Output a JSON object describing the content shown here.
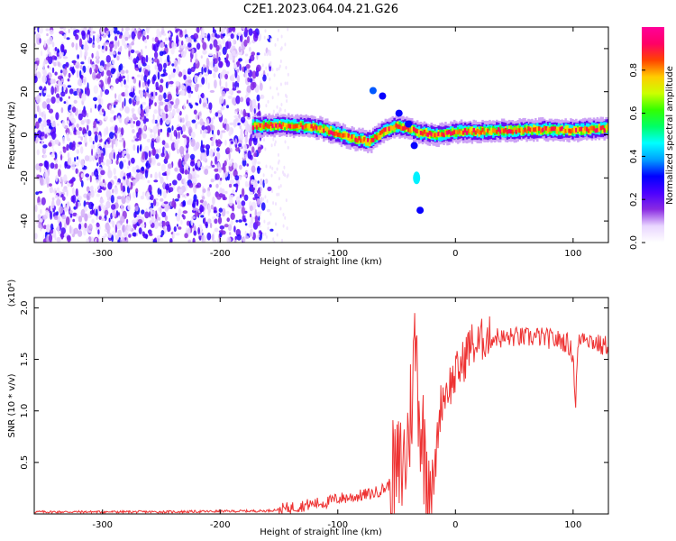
{
  "page_title": "C2E1.2023.064.04.21.G26",
  "chart_data": [
    {
      "type": "heatmap",
      "title": "C2E1.2023.064.04.21.G26",
      "xlabel": "Height of straight line (km)",
      "ylabel": "Frequency (Hz)",
      "xlim": [
        -358,
        130
      ],
      "ylim": [
        -50,
        50
      ],
      "x_ticks": [
        -300,
        -200,
        -100,
        0,
        100
      ],
      "y_ticks": [
        -40,
        -20,
        0,
        20,
        40
      ],
      "colorbar": {
        "label": "Normalized spectral amplitude",
        "range": [
          0.0,
          1.0
        ],
        "ticks": [
          "0.0",
          "0.2",
          "0.4",
          "0.6",
          "0.8"
        ],
        "colormap": [
          "#ffffff",
          "#e9d6ff",
          "#8a2be2",
          "#4b00ff",
          "#0000ff",
          "#00a0ff",
          "#00ffff",
          "#00ff66",
          "#33ff00",
          "#ccff00",
          "#ffcc00",
          "#ff4400",
          "#ff0066",
          "#ff0099"
        ]
      },
      "features": [
        {
          "name": "noise",
          "x_range": [
            -358,
            -165
          ],
          "y_range": [
            -50,
            50
          ],
          "amplitude": 0.15
        },
        {
          "name": "signal_line",
          "points": [
            [
              -172,
              4
            ],
            [
              -150,
              4.5
            ],
            [
              -130,
              4
            ],
            [
              -115,
              3
            ],
            [
              -100,
              0.5
            ],
            [
              -85,
              -2
            ],
            [
              -72,
              -3
            ],
            [
              -60,
              2
            ],
            [
              -50,
              4
            ],
            [
              -40,
              3
            ],
            [
              -30,
              1
            ],
            [
              -15,
              0
            ],
            [
              0,
              1.5
            ],
            [
              20,
              1.5
            ],
            [
              50,
              2
            ],
            [
              80,
              2.5
            ],
            [
              100,
              2
            ],
            [
              130,
              3
            ]
          ],
          "amplitude": 0.85
        },
        {
          "name": "branch",
          "points": [
            [
              -70,
              20.5
            ],
            [
              -62,
              18
            ],
            [
              -48,
              10
            ],
            [
              -40,
              5
            ],
            [
              -35,
              -5
            ],
            [
              -33,
              -20
            ],
            [
              -30,
              -35
            ]
          ],
          "amplitude": 0.3
        }
      ]
    },
    {
      "type": "line",
      "xlabel": "Height of straight line (km)",
      "ylabel": "SNR (10 * v/v)",
      "y_multiplier": "(x10⁴)",
      "xlim": [
        -358,
        130
      ],
      "ylim": [
        0,
        2.1
      ],
      "x_ticks": [
        -300,
        -200,
        -100,
        0,
        100
      ],
      "y_ticks": [
        "0.5",
        "1.0",
        "1.5",
        "2.0"
      ],
      "color": "#ee3333",
      "series": [
        {
          "x": [
            -358,
            -300,
            -250,
            -200,
            -160,
            -145,
            -130,
            -120,
            -110,
            -100,
            -90,
            -80,
            -70,
            -60,
            -50,
            -42,
            -38,
            -34,
            -30,
            -26,
            -22,
            -18,
            -15,
            -12,
            -8,
            -5,
            -2,
            0,
            3,
            5,
            8,
            10,
            14,
            18,
            22,
            26,
            30,
            35,
            40,
            50,
            60,
            70,
            80,
            90,
            95,
            100,
            102,
            104,
            106,
            110,
            115,
            120,
            125,
            130
          ],
          "y": [
            0.02,
            0.02,
            0.02,
            0.025,
            0.03,
            0.05,
            0.08,
            0.1,
            0.11,
            0.15,
            0.16,
            0.18,
            0.2,
            0.25,
            0.35,
            0.55,
            1.0,
            1.7,
            0.9,
            0.6,
            0.4,
            0.3,
            0.8,
            1.1,
            1.2,
            1.25,
            1.3,
            1.35,
            1.4,
            1.45,
            1.5,
            1.6,
            1.65,
            1.62,
            1.68,
            1.72,
            1.7,
            1.72,
            1.7,
            1.72,
            1.71,
            1.72,
            1.7,
            1.68,
            1.66,
            1.55,
            1.05,
            1.6,
            1.7,
            1.75,
            1.68,
            1.66,
            1.62,
            1.65
          ]
        }
      ]
    }
  ]
}
